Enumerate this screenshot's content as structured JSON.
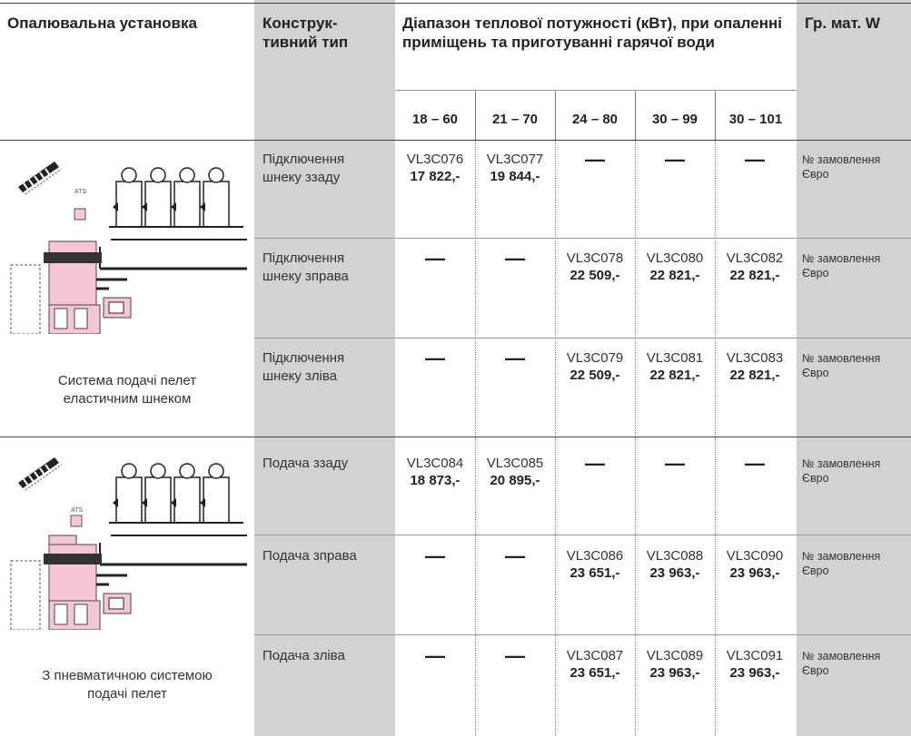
{
  "headers": {
    "installation": "Опалювальна установка",
    "construction_type": "Конструк-тивний тип",
    "power_range": "Діапазон теплової потужності (кВт), при опаленні приміщень та приготуванні гарячої води",
    "group": "Гр. мат. W"
  },
  "power_columns": [
    "18 – 60",
    "21 – 70",
    "24 – 80",
    "30 – 99",
    "30 – 101"
  ],
  "group_text": {
    "order_no": "№ замовлення",
    "euro": "Євро"
  },
  "dash": "—",
  "sections": [
    {
      "caption": "Система подачі пелет еластичним шнеком",
      "diagram_label": "ATS",
      "rows": [
        {
          "type": "Підключення шнеку ззаду",
          "cells": [
            {
              "code": "VL3C076",
              "price": "17 822,-"
            },
            {
              "code": "VL3C077",
              "price": "19 844,-"
            },
            null,
            null,
            null
          ]
        },
        {
          "type": "Підключення шнеку зправа",
          "cells": [
            null,
            null,
            {
              "code": "VL3C078",
              "price": "22 509,-"
            },
            {
              "code": "VL3C080",
              "price": "22 821,-"
            },
            {
              "code": "VL3C082",
              "price": "22 821,-"
            }
          ]
        },
        {
          "type": "Підключення шнеку зліва",
          "cells": [
            null,
            null,
            {
              "code": "VL3C079",
              "price": "22 509,-"
            },
            {
              "code": "VL3C081",
              "price": "22 821,-"
            },
            {
              "code": "VL3C083",
              "price": "22 821,-"
            }
          ]
        }
      ]
    },
    {
      "caption": "З пневматичною системою подачі пелет",
      "diagram_label": "ATS",
      "rows": [
        {
          "type": "Подача ззаду",
          "cells": [
            {
              "code": "VL3C084",
              "price": "18 873,-"
            },
            {
              "code": "VL3C085",
              "price": "20 895,-"
            },
            null,
            null,
            null
          ]
        },
        {
          "type": "Подача зправа",
          "cells": [
            null,
            null,
            {
              "code": "VL3C086",
              "price": "23 651,-"
            },
            {
              "code": "VL3C088",
              "price": "23 963,-"
            },
            {
              "code": "VL3C090",
              "price": "23 963,-"
            }
          ]
        },
        {
          "type": "Подача зліва",
          "cells": [
            null,
            null,
            {
              "code": "VL3C087",
              "price": "23 651,-"
            },
            {
              "code": "VL3C089",
              "price": "23 963,-"
            },
            {
              "code": "VL3C091",
              "price": "23 963,-"
            }
          ]
        }
      ]
    }
  ]
}
